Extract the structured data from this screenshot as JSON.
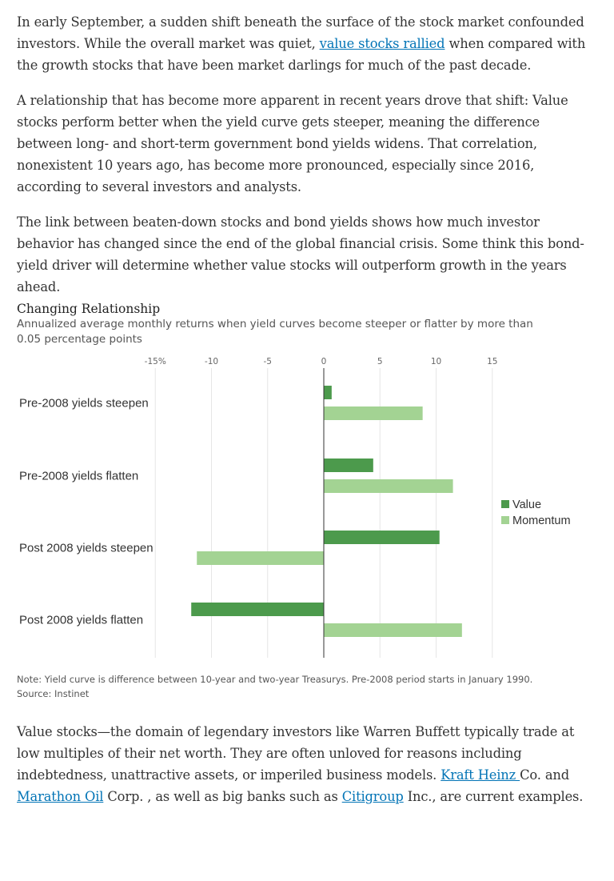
{
  "article": {
    "p1": {
      "a": "In early September, a sudden shift beneath the surface of the stock market confounded investors. While the overall market was quiet, ",
      "link": "value stocks rallied",
      "b": " when compared with the growth stocks that have been market darlings for much of the past decade."
    },
    "p2": "A relationship that has become more apparent in recent years drove that shift: Value stocks perform better when the yield curve gets steeper, meaning the difference between long- and short-term government bond yields widens. That correlation, nonexistent 10 years ago, has become more pronounced, especially since 2016, according to several investors and analysts.",
    "p3": "The link between beaten-down stocks and bond yields shows how much investor behavior has changed since the end of the global financial crisis. Some think this bond-yield driver will determine whether value stocks will outperform growth in the years ahead.",
    "p4": {
      "a": "Value stocks—the domain of legendary investors like Warren Buffett typically trade at low multiples of their net worth. They are often unloved for reasons including indebtedness, unattractive assets, or imperiled business models. ",
      "link1": "Kraft Heinz ",
      "b": "Co. and ",
      "link2": "Marathon Oil",
      "c": " Corp. , as well as big banks such as ",
      "link3": "Citigroup",
      "d": " Inc., are current examples."
    }
  },
  "chart_data": {
    "type": "bar",
    "orientation": "horizontal",
    "title": "Changing Relationship",
    "subtitle": "Annualized average monthly returns when yield curves become steeper or flatter by more than 0.05 percentage points",
    "tick_labels": [
      "-15%",
      "-10",
      "-5",
      "0",
      "5",
      "10",
      "15"
    ],
    "tick_values": [
      -15,
      -10,
      -5,
      0,
      5,
      10,
      15
    ],
    "xlim": [
      -15,
      15
    ],
    "categories": [
      "Pre-2008 yields steepen",
      "Pre-2008 yields flatten",
      "Post 2008 yields steepen",
      "Post 2008 yields flatten"
    ],
    "series": [
      {
        "name": "Value",
        "color": "#4c9a4c",
        "values": [
          0.7,
          4.4,
          10.3,
          -11.8
        ]
      },
      {
        "name": "Momentum",
        "color": "#a3d393",
        "values": [
          8.8,
          11.5,
          -11.3,
          12.3
        ]
      }
    ],
    "legend_position": "right",
    "grid": true,
    "note": "Note: Yield curve is difference between 10-year and two-year Treasurys. Pre-2008 period starts in January 1990.",
    "source": "Source: Instinet"
  }
}
